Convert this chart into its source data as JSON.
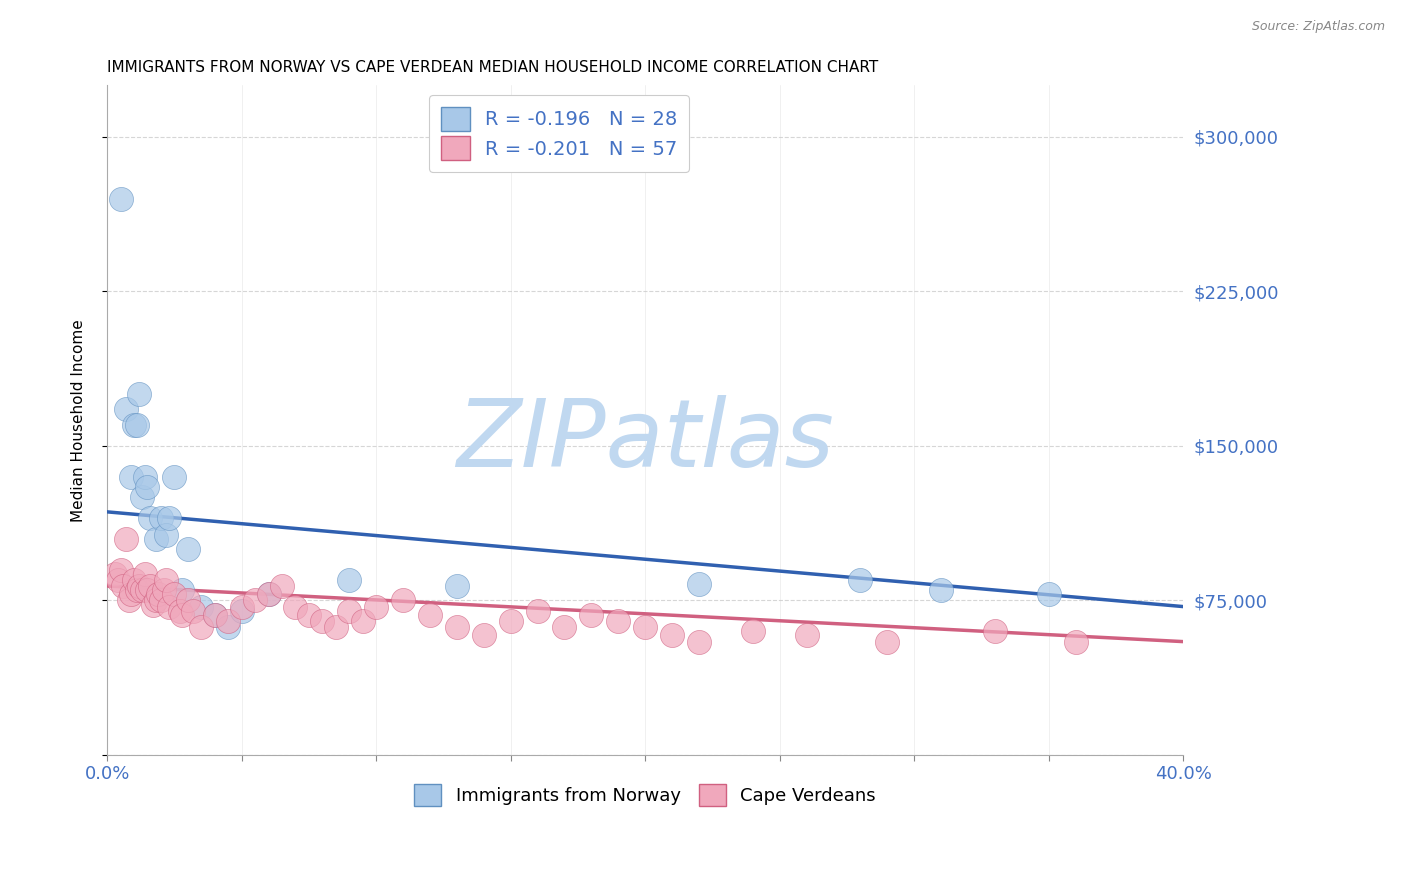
{
  "title": "IMMIGRANTS FROM NORWAY VS CAPE VERDEAN MEDIAN HOUSEHOLD INCOME CORRELATION CHART",
  "source": "Source: ZipAtlas.com",
  "ylabel": "Median Household Income",
  "xlim": [
    0.0,
    0.4
  ],
  "ylim": [
    0,
    325000
  ],
  "xticks": [
    0.0,
    0.05,
    0.1,
    0.15,
    0.2,
    0.25,
    0.3,
    0.35,
    0.4
  ],
  "yticks_right": [
    75000,
    150000,
    225000,
    300000
  ],
  "ytick_labels_right": [
    "$75,000",
    "$150,000",
    "$225,000",
    "$300,000"
  ],
  "norway_R": -0.196,
  "norway_N": 28,
  "capeverde_R": -0.201,
  "capeverde_N": 57,
  "norway_color": "#a8c8e8",
  "norway_edge_color": "#6090c0",
  "norway_line_color": "#3060b0",
  "capeverde_color": "#f0a8bc",
  "capeverde_edge_color": "#d06080",
  "capeverde_line_color": "#d06080",
  "norway_line_y0": 118000,
  "norway_line_y1": 72000,
  "capeverde_line_y0": 82000,
  "capeverde_line_y1": 55000,
  "norway_x": [
    0.005,
    0.007,
    0.009,
    0.01,
    0.011,
    0.012,
    0.013,
    0.014,
    0.015,
    0.016,
    0.018,
    0.02,
    0.022,
    0.023,
    0.025,
    0.028,
    0.03,
    0.035,
    0.04,
    0.045,
    0.05,
    0.06,
    0.09,
    0.13,
    0.22,
    0.28,
    0.31,
    0.35
  ],
  "norway_y": [
    270000,
    168000,
    135000,
    160000,
    160000,
    175000,
    125000,
    135000,
    130000,
    115000,
    105000,
    115000,
    107000,
    115000,
    135000,
    80000,
    100000,
    72000,
    68000,
    62000,
    70000,
    78000,
    85000,
    82000,
    83000,
    85000,
    80000,
    78000
  ],
  "capeverde_x": [
    0.003,
    0.004,
    0.005,
    0.006,
    0.007,
    0.008,
    0.009,
    0.01,
    0.011,
    0.012,
    0.013,
    0.014,
    0.015,
    0.016,
    0.017,
    0.018,
    0.019,
    0.02,
    0.021,
    0.022,
    0.023,
    0.025,
    0.027,
    0.028,
    0.03,
    0.032,
    0.035,
    0.04,
    0.045,
    0.05,
    0.055,
    0.06,
    0.065,
    0.07,
    0.075,
    0.08,
    0.085,
    0.09,
    0.095,
    0.1,
    0.11,
    0.12,
    0.13,
    0.14,
    0.15,
    0.16,
    0.17,
    0.18,
    0.19,
    0.2,
    0.21,
    0.22,
    0.24,
    0.26,
    0.29,
    0.33,
    0.36
  ],
  "capeverde_y": [
    88000,
    85000,
    90000,
    82000,
    105000,
    75000,
    78000,
    85000,
    80000,
    82000,
    80000,
    88000,
    80000,
    82000,
    73000,
    75000,
    78000,
    75000,
    80000,
    85000,
    72000,
    78000,
    70000,
    68000,
    75000,
    70000,
    62000,
    68000,
    65000,
    72000,
    75000,
    78000,
    82000,
    72000,
    68000,
    65000,
    62000,
    70000,
    65000,
    72000,
    75000,
    68000,
    62000,
    58000,
    65000,
    70000,
    62000,
    68000,
    65000,
    62000,
    58000,
    55000,
    60000,
    58000,
    55000,
    60000,
    55000
  ],
  "background_color": "#ffffff",
  "grid_color": "#cccccc",
  "watermark_zip_color": "#c0d8f0",
  "watermark_atlas_color": "#c0d8f0",
  "title_fontsize": 11,
  "axis_label_color": "#4472c4"
}
